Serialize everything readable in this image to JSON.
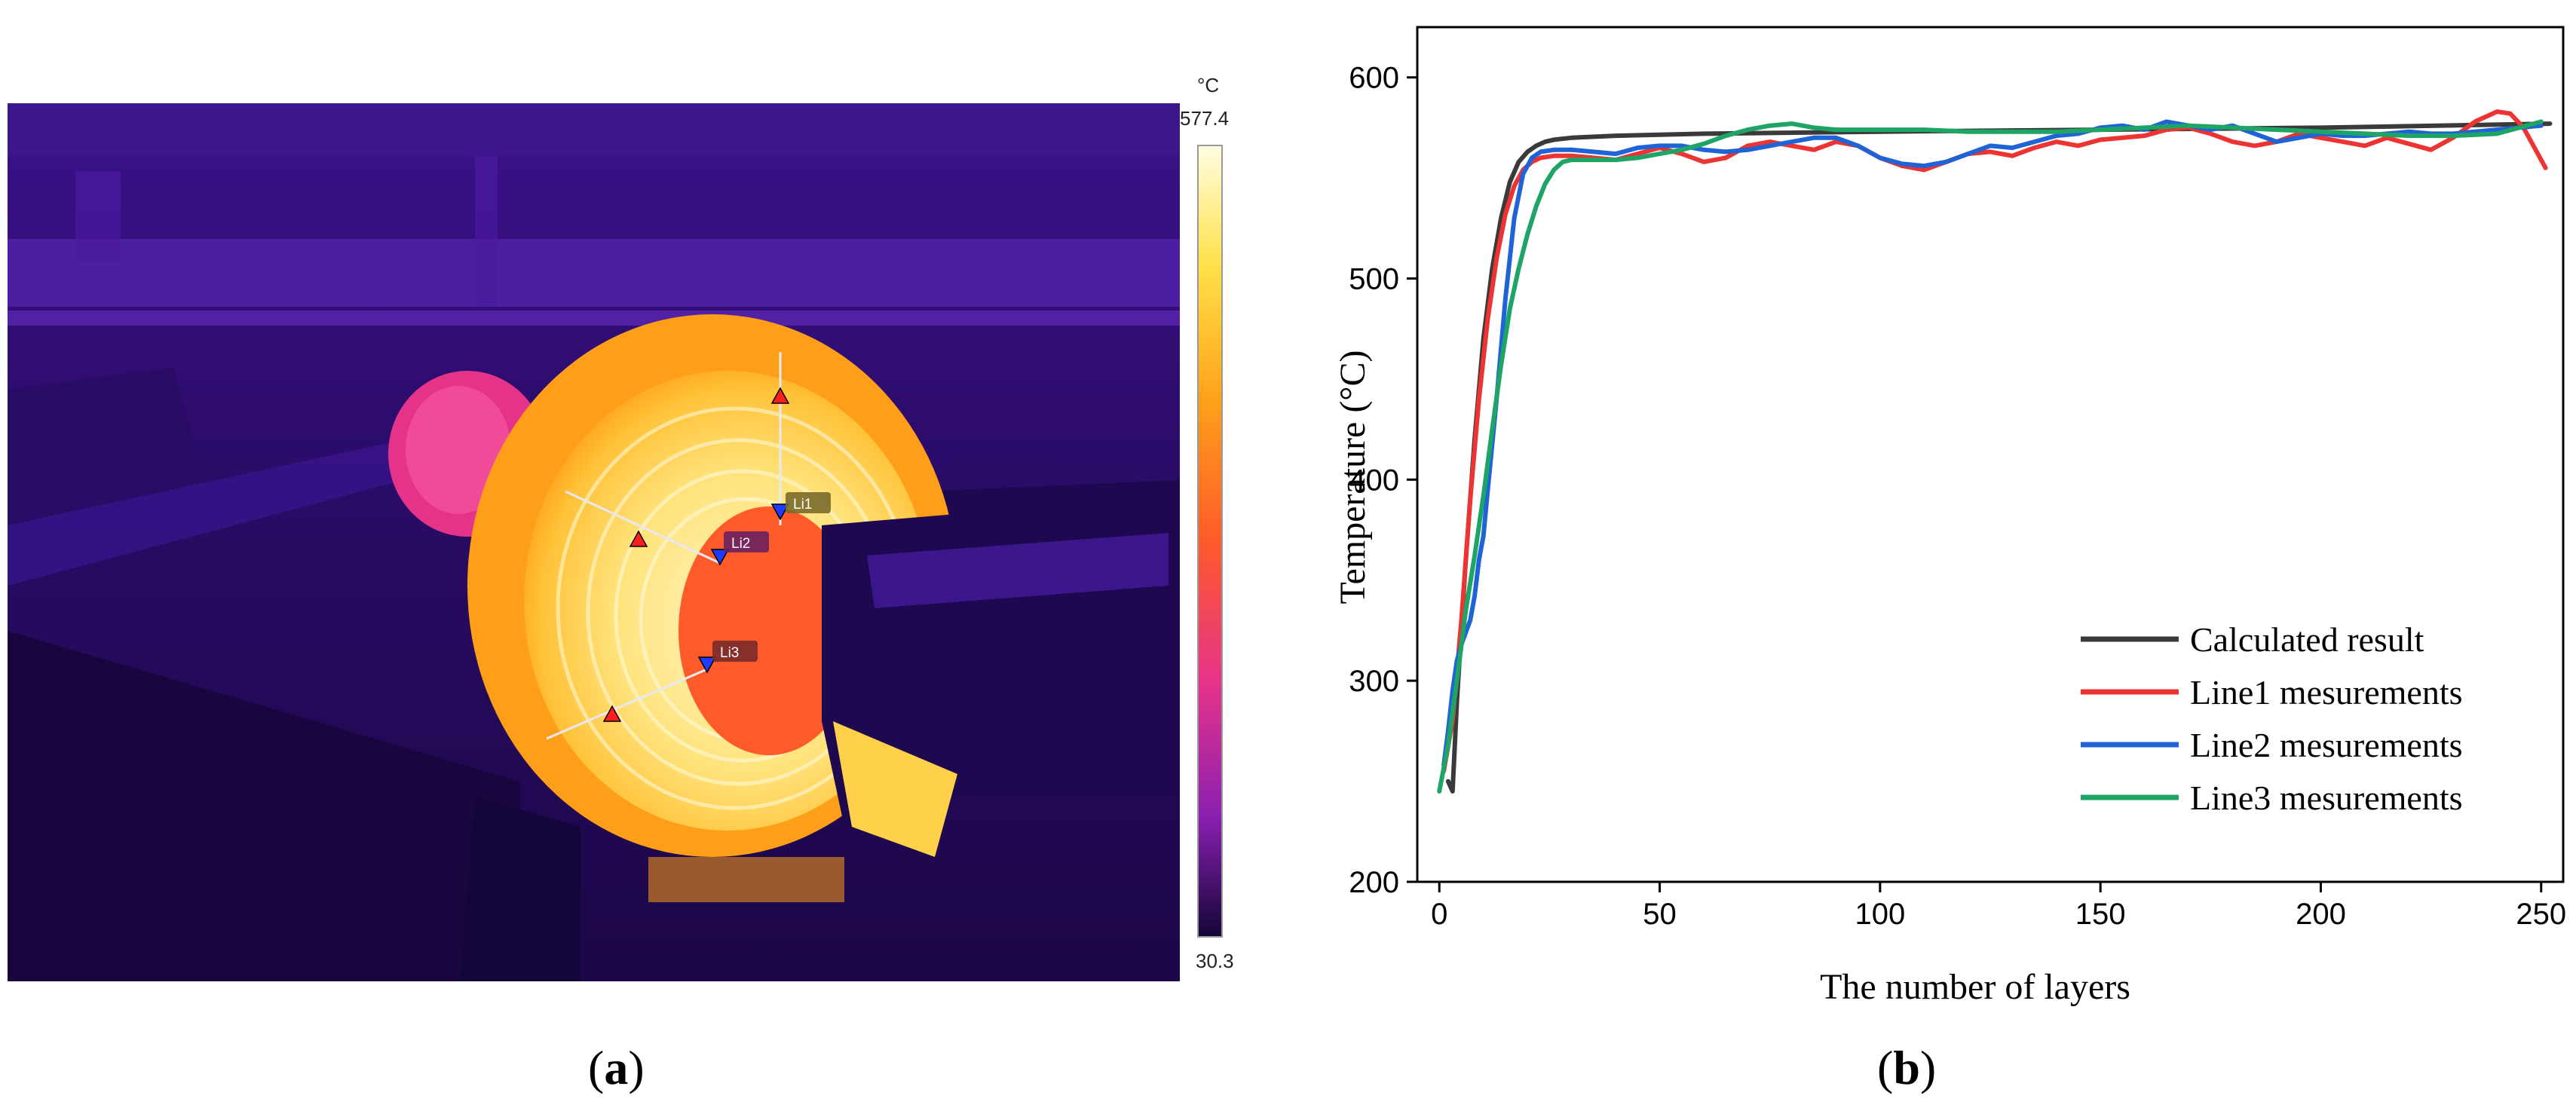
{
  "panel_a": {
    "label_open": "(",
    "label_letter": "a",
    "label_close": ")",
    "scale_unit": "°C",
    "scale_max": "577.4",
    "scale_min": "30.3",
    "line_tags": [
      "Li1",
      "Li2",
      "Li3"
    ],
    "colors": {
      "background": "#2a0b66",
      "structure": "#4a1a9e",
      "coil_outer": "#ffa21a",
      "coil_inner": "#fff0a0",
      "hot_core": "#ff5a2a",
      "magenta": "#e5338a"
    }
  },
  "panel_b": {
    "label_open": "(",
    "label_letter": "b",
    "label_close": ")"
  },
  "chart_data": {
    "type": "line",
    "xlabel": "The number of layers",
    "ylabel": "Temperature (°C)",
    "xlim": [
      -5,
      255
    ],
    "ylim": [
      200,
      625
    ],
    "xticks": [
      0,
      50,
      100,
      150,
      200,
      250
    ],
    "yticks": [
      200,
      300,
      400,
      500,
      600
    ],
    "legend_position": "bottom-right",
    "series": [
      {
        "name": "Calculated result",
        "color": "#3a3a3a",
        "x": [
          2,
          3,
          4,
          6,
          8,
          10,
          12,
          14,
          16,
          18,
          20,
          22,
          24,
          26,
          30,
          40,
          60,
          100,
          150,
          200,
          252
        ],
        "y": [
          250,
          245,
          290,
          360,
          420,
          470,
          505,
          530,
          548,
          558,
          563,
          566,
          568,
          569,
          570,
          571,
          572,
          573,
          574,
          575,
          577
        ]
      },
      {
        "name": "Line1 mesurements",
        "color": "#ee3333",
        "x": [
          1,
          3,
          5,
          7,
          9,
          11,
          13,
          15,
          17,
          19,
          21,
          23,
          26,
          30,
          35,
          40,
          45,
          50,
          55,
          60,
          65,
          70,
          75,
          80,
          85,
          90,
          95,
          100,
          105,
          110,
          115,
          120,
          125,
          130,
          135,
          140,
          145,
          150,
          155,
          160,
          165,
          170,
          175,
          180,
          185,
          190,
          195,
          200,
          205,
          210,
          215,
          220,
          225,
          230,
          235,
          240,
          243,
          246,
          249,
          251
        ],
        "y": [
          255,
          280,
          330,
          390,
          440,
          480,
          510,
          532,
          546,
          554,
          558,
          560,
          561,
          561,
          560,
          559,
          562,
          565,
          562,
          558,
          560,
          566,
          568,
          566,
          564,
          568,
          566,
          560,
          556,
          554,
          558,
          562,
          563,
          561,
          565,
          568,
          566,
          569,
          570,
          571,
          574,
          575,
          572,
          568,
          566,
          568,
          572,
          570,
          568,
          566,
          570,
          567,
          564,
          570,
          578,
          583,
          582,
          575,
          563,
          555
        ]
      },
      {
        "name": "Line2 mesurements",
        "color": "#1f64d6",
        "x": [
          1,
          2,
          3,
          4,
          5,
          6,
          7,
          8,
          9,
          10,
          11,
          13,
          15,
          17,
          19,
          21,
          23,
          26,
          30,
          35,
          40,
          45,
          50,
          55,
          60,
          65,
          70,
          75,
          80,
          85,
          90,
          95,
          100,
          105,
          110,
          115,
          120,
          125,
          130,
          135,
          140,
          145,
          150,
          155,
          160,
          165,
          170,
          175,
          180,
          185,
          190,
          195,
          200,
          205,
          210,
          215,
          220,
          225,
          230,
          235,
          240,
          245,
          250
        ],
        "y": [
          258,
          275,
          295,
          310,
          318,
          324,
          330,
          342,
          360,
          372,
          395,
          440,
          490,
          530,
          552,
          560,
          563,
          564,
          564,
          563,
          562,
          565,
          566,
          566,
          564,
          563,
          564,
          566,
          568,
          570,
          570,
          566,
          560,
          557,
          556,
          558,
          562,
          566,
          565,
          568,
          571,
          572,
          575,
          576,
          574,
          578,
          576,
          574,
          576,
          572,
          568,
          570,
          572,
          571,
          571,
          572,
          573,
          572,
          572,
          573,
          574,
          575,
          576
        ]
      },
      {
        "name": "Line3 mesurements",
        "color": "#1ea566",
        "x": [
          0,
          2,
          4,
          6,
          8,
          10,
          12,
          14,
          16,
          18,
          20,
          22,
          24,
          26,
          28,
          30,
          34,
          40,
          45,
          50,
          55,
          60,
          65,
          70,
          75,
          80,
          85,
          90,
          95,
          100,
          110,
          120,
          130,
          140,
          150,
          160,
          170,
          180,
          190,
          200,
          210,
          220,
          230,
          240,
          250
        ],
        "y": [
          245,
          268,
          300,
          335,
          362,
          392,
          425,
          457,
          485,
          505,
          522,
          536,
          547,
          554,
          558,
          559,
          559,
          559,
          560,
          562,
          564,
          567,
          571,
          574,
          576,
          577,
          575,
          574,
          574,
          574,
          574,
          573,
          573,
          573,
          574,
          575,
          576,
          575,
          574,
          573,
          572,
          571,
          571,
          572,
          578
        ]
      }
    ]
  }
}
